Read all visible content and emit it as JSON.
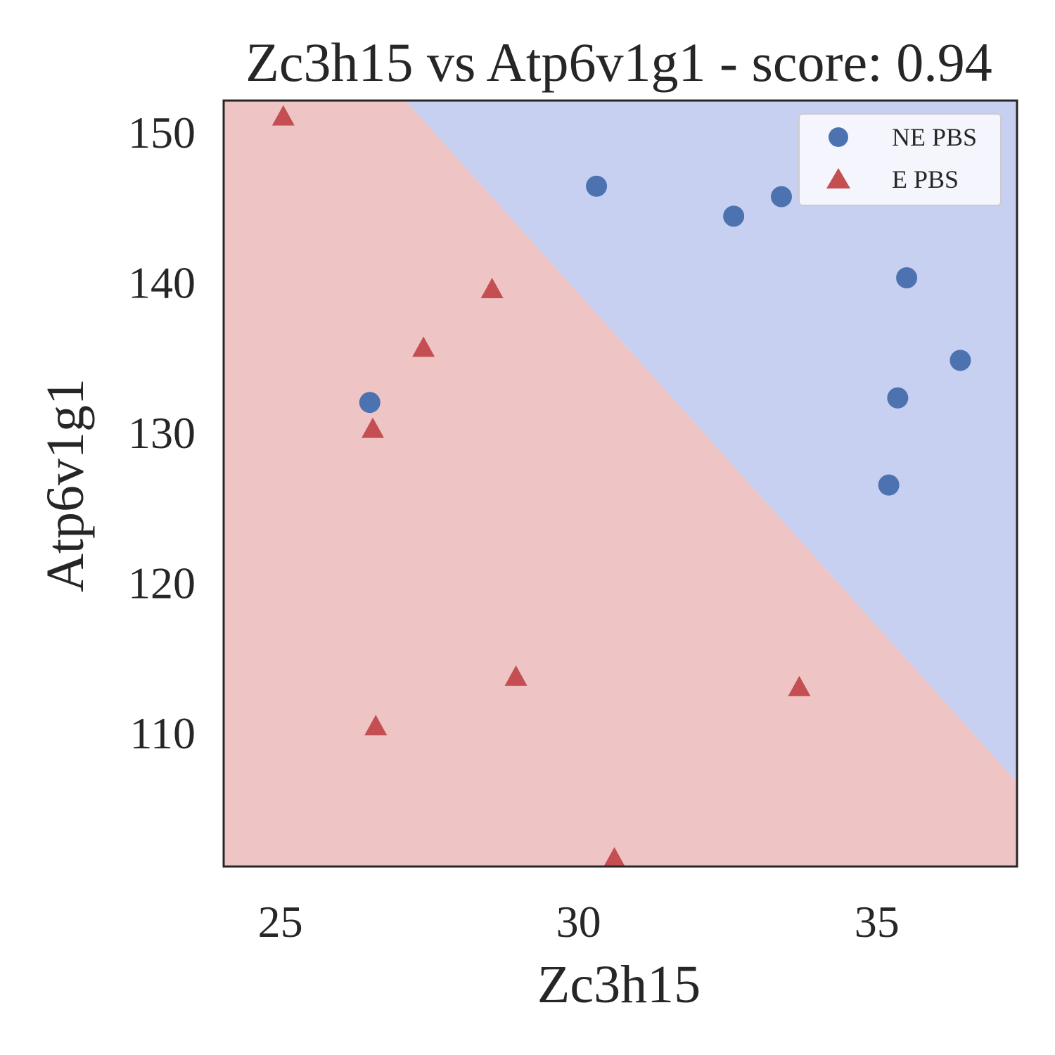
{
  "chart_data": {
    "type": "scatter",
    "title": "Zc3h15 vs Atp6v1g1 - score: 0.94",
    "xlabel": "Zc3h15",
    "ylabel": "Atp6v1g1",
    "xlim": [
      24.05,
      37.35
    ],
    "ylim": [
      101.1,
      152.1
    ],
    "xticks": [
      25,
      30,
      35
    ],
    "yticks": [
      110,
      120,
      130,
      140,
      150
    ],
    "grid": false,
    "legend_position": "top-right",
    "decision_boundary": {
      "line_points": [
        [
          27.1,
          152.1
        ],
        [
          37.35,
          106.7
        ]
      ],
      "region_colors": {
        "NE PBS": "#c8d0f1",
        "E PBS": "#efc4c4"
      }
    },
    "series": [
      {
        "name": "NE PBS",
        "marker": "circle",
        "color": "#4c72b0",
        "points": [
          {
            "x": 30.3,
            "y": 146.4
          },
          {
            "x": 32.6,
            "y": 144.4
          },
          {
            "x": 33.4,
            "y": 145.7
          },
          {
            "x": 35.5,
            "y": 140.3
          },
          {
            "x": 36.4,
            "y": 134.8
          },
          {
            "x": 35.35,
            "y": 132.3
          },
          {
            "x": 35.2,
            "y": 126.5
          },
          {
            "x": 26.5,
            "y": 132.0
          }
        ]
      },
      {
        "name": "E PBS",
        "marker": "triangle",
        "color": "#c44e52",
        "points": [
          {
            "x": 25.05,
            "y": 151.0
          },
          {
            "x": 28.55,
            "y": 139.5
          },
          {
            "x": 27.4,
            "y": 135.6
          },
          {
            "x": 26.55,
            "y": 130.2
          },
          {
            "x": 28.95,
            "y": 113.7
          },
          {
            "x": 33.7,
            "y": 113.0
          },
          {
            "x": 26.6,
            "y": 110.4
          },
          {
            "x": 30.6,
            "y": 101.6
          }
        ]
      }
    ]
  }
}
